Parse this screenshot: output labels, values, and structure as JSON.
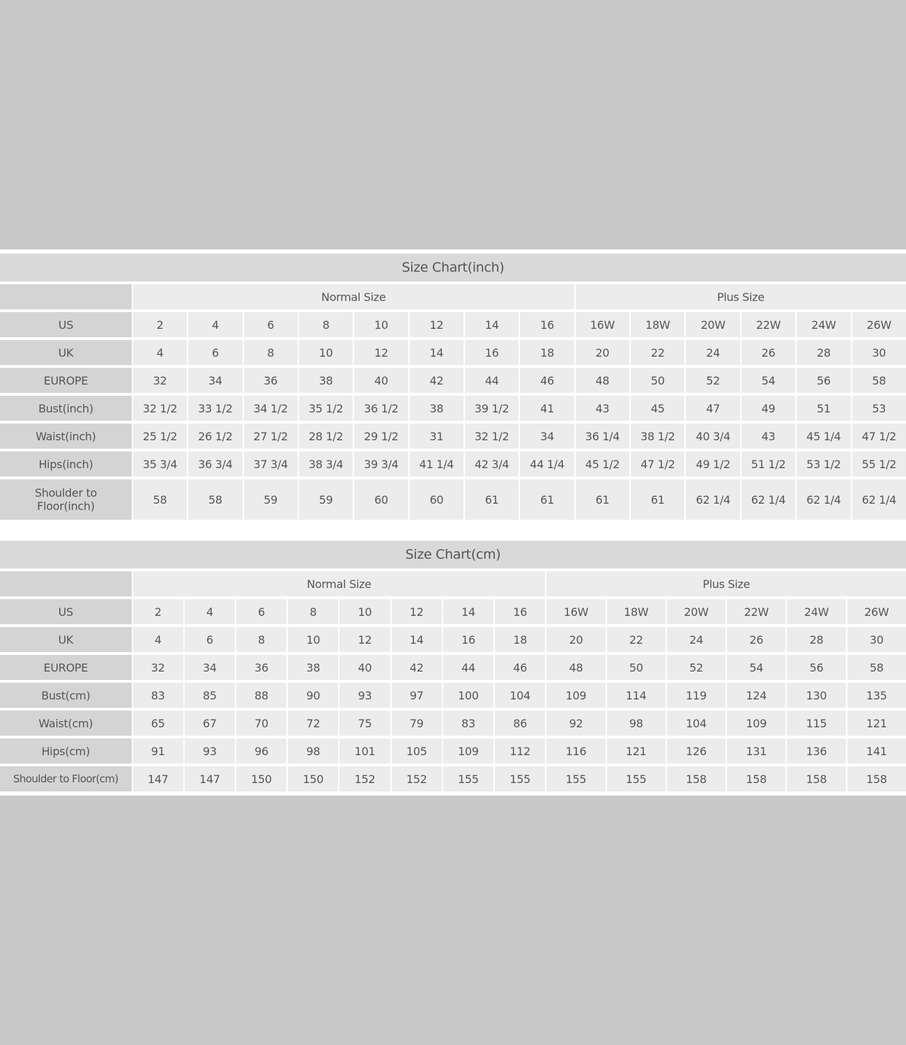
{
  "tables": [
    {
      "id": "inch",
      "title": "Size Chart(inch)",
      "groups": [
        {
          "label": "Normal Size",
          "span": 8
        },
        {
          "label": "Plus Size",
          "span": 6
        }
      ],
      "rows": [
        {
          "label": "US",
          "values": [
            "2",
            "4",
            "6",
            "8",
            "10",
            "12",
            "14",
            "16",
            "16W",
            "18W",
            "20W",
            "22W",
            "24W",
            "26W"
          ]
        },
        {
          "label": "UK",
          "values": [
            "4",
            "6",
            "8",
            "10",
            "12",
            "14",
            "16",
            "18",
            "20",
            "22",
            "24",
            "26",
            "28",
            "30"
          ]
        },
        {
          "label": "EUROPE",
          "values": [
            "32",
            "34",
            "36",
            "38",
            "40",
            "42",
            "44",
            "46",
            "48",
            "50",
            "52",
            "54",
            "56",
            "58"
          ]
        },
        {
          "label": "Bust(inch)",
          "values": [
            "32 1/2",
            "33 1/2",
            "34 1/2",
            "35 1/2",
            "36 1/2",
            "38",
            "39 1/2",
            "41",
            "43",
            "45",
            "47",
            "49",
            "51",
            "53"
          ]
        },
        {
          "label": "Waist(inch)",
          "values": [
            "25 1/2",
            "26 1/2",
            "27 1/2",
            "28 1/2",
            "29 1/2",
            "31",
            "32 1/2",
            "34",
            "36 1/4",
            "38 1/2",
            "40 3/4",
            "43",
            "45 1/4",
            "47 1/2"
          ]
        },
        {
          "label": "Hips(inch)",
          "values": [
            "35 3/4",
            "36 3/4",
            "37 3/4",
            "38 3/4",
            "39 3/4",
            "41 1/4",
            "42 3/4",
            "44 1/4",
            "45 1/2",
            "47 1/2",
            "49 1/2",
            "51 1/2",
            "53 1/2",
            "55 1/2"
          ]
        },
        {
          "label": "Shoulder to\nFloor(inch)",
          "values": [
            "58",
            "58",
            "59",
            "59",
            "60",
            "60",
            "61",
            "61",
            "61",
            "61",
            "62 1/4",
            "62 1/4",
            "62 1/4",
            "62 1/4"
          ]
        }
      ]
    },
    {
      "id": "cm",
      "title": "Size Chart(cm)",
      "groups": [
        {
          "label": "Normal Size",
          "span": 8
        },
        {
          "label": "Plus Size",
          "span": 6
        }
      ],
      "rows": [
        {
          "label": "US",
          "values": [
            "2",
            "4",
            "6",
            "8",
            "10",
            "12",
            "14",
            "16",
            "16W",
            "18W",
            "20W",
            "22W",
            "24W",
            "26W"
          ]
        },
        {
          "label": "UK",
          "values": [
            "4",
            "6",
            "8",
            "10",
            "12",
            "14",
            "16",
            "18",
            "20",
            "22",
            "24",
            "26",
            "28",
            "30"
          ]
        },
        {
          "label": "EUROPE",
          "values": [
            "32",
            "34",
            "36",
            "38",
            "40",
            "42",
            "44",
            "46",
            "48",
            "50",
            "52",
            "54",
            "56",
            "58"
          ]
        },
        {
          "label": "Bust(cm)",
          "values": [
            "83",
            "85",
            "88",
            "90",
            "93",
            "97",
            "100",
            "104",
            "109",
            "114",
            "119",
            "124",
            "130",
            "135"
          ]
        },
        {
          "label": "Waist(cm)",
          "values": [
            "65",
            "67",
            "70",
            "72",
            "75",
            "79",
            "83",
            "86",
            "92",
            "98",
            "104",
            "109",
            "115",
            "121"
          ]
        },
        {
          "label": "Hips(cm)",
          "values": [
            "91",
            "93",
            "96",
            "98",
            "101",
            "105",
            "109",
            "112",
            "116",
            "121",
            "126",
            "131",
            "136",
            "141"
          ]
        },
        {
          "label": "Shoulder to Floor(cm)",
          "values": [
            "147",
            "147",
            "150",
            "150",
            "152",
            "152",
            "155",
            "155",
            "155",
            "155",
            "158",
            "158",
            "158",
            "158"
          ]
        }
      ]
    }
  ]
}
